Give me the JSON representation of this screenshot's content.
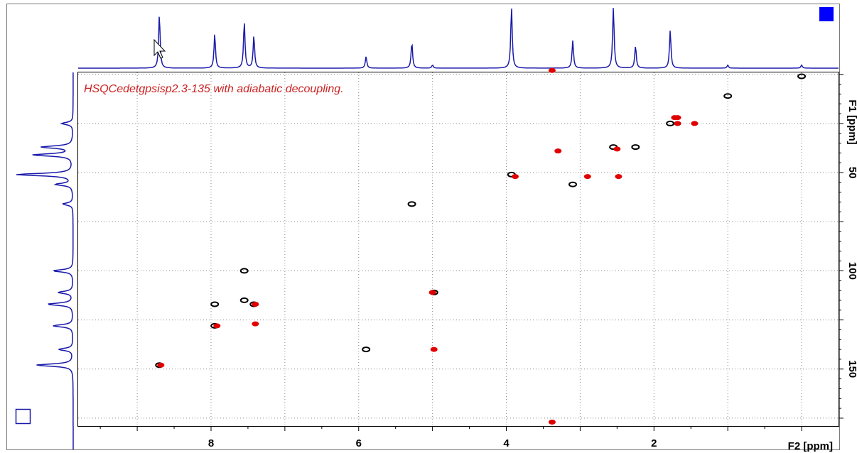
{
  "chart_data": {
    "type": "scatter",
    "title": "HSQCedetgpsisp2.3-135 with adiabatic decoupling.",
    "xlabel": "F2 [ppm]",
    "ylabel": "F1 [ppm]",
    "xlim": [
      9.8,
      -0.5
    ],
    "ylim": [
      -1,
      179
    ],
    "x_ticks": [
      8,
      6,
      4,
      2
    ],
    "x_tick_labels": [
      "8",
      "6",
      "4",
      "2"
    ],
    "y_ticks": [
      50,
      100,
      150
    ],
    "y_tick_labels": [
      "50",
      "100",
      "150"
    ],
    "grid": true,
    "series": [
      {
        "values": [
          [
            8.7,
            148
          ],
          [
            7.95,
            128
          ],
          [
            7.95,
            117
          ],
          [
            7.55,
            100
          ],
          [
            7.55,
            115
          ],
          [
            7.42,
            117
          ],
          [
            5.9,
            140
          ],
          [
            5.28,
            66
          ],
          [
            4.98,
            111
          ],
          [
            3.93,
            51
          ],
          [
            3.1,
            56
          ],
          [
            2.55,
            37
          ],
          [
            2.25,
            37
          ],
          [
            1.78,
            25
          ],
          [
            1.0,
            11
          ],
          [
            0.0,
            1
          ]
        ]
      },
      {
        "values": [
          [
            8.68,
            148
          ],
          [
            7.92,
            128
          ],
          [
            7.4,
            117
          ],
          [
            7.4,
            127
          ],
          [
            5.0,
            111
          ],
          [
            4.98,
            140
          ],
          [
            3.88,
            52
          ],
          [
            3.3,
            39
          ],
          [
            2.9,
            52
          ],
          [
            2.5,
            38
          ],
          [
            2.48,
            52
          ],
          [
            1.72,
            22
          ],
          [
            1.68,
            22
          ],
          [
            1.68,
            25
          ],
          [
            1.45,
            25
          ],
          [
            3.38,
            -2
          ],
          [
            3.38,
            177
          ]
        ]
      }
    ],
    "f2_projection": [
      [
        8.7,
        0.88
      ],
      [
        7.95,
        0.56
      ],
      [
        7.55,
        0.76
      ],
      [
        7.42,
        0.53
      ],
      [
        5.9,
        0.19
      ],
      [
        5.28,
        0.42
      ],
      [
        5.0,
        0.05
      ],
      [
        3.93,
        1.0
      ],
      [
        3.1,
        0.45
      ],
      [
        2.55,
        1.0
      ],
      [
        2.25,
        0.37
      ],
      [
        1.78,
        0.62
      ],
      [
        1.0,
        0.05
      ],
      [
        0.0,
        0.05
      ]
    ],
    "f1_projection": [
      [
        25,
        0.2
      ],
      [
        37,
        0.55
      ],
      [
        41,
        0.7
      ],
      [
        51,
        1.0
      ],
      [
        56,
        0.3
      ],
      [
        66,
        0.18
      ],
      [
        100,
        0.35
      ],
      [
        111,
        0.26
      ],
      [
        117,
        0.45
      ],
      [
        128,
        0.35
      ],
      [
        140,
        0.25
      ],
      [
        148,
        0.65
      ]
    ],
    "colors": {
      "positive": "#000000",
      "negative": "#e00000",
      "projection": "#1a1aaa",
      "title": "#cc2222",
      "grid": "#8a8a8a",
      "marker": "#0000ff"
    }
  }
}
